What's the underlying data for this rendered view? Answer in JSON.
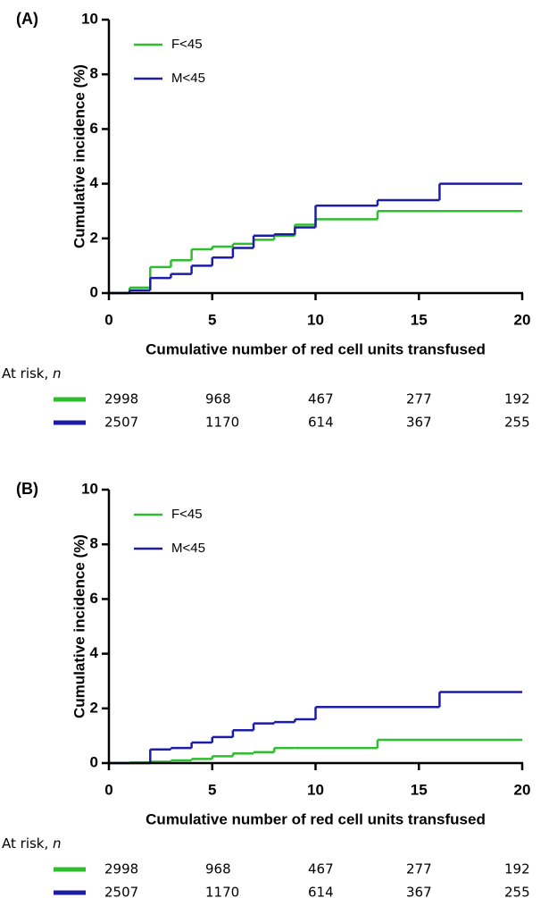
{
  "chart_data": [
    {
      "type": "step",
      "panel_label": "(A)",
      "y_label": "Cumulative incidence (%)",
      "x_label": "Cumulative number of red cell units transfused",
      "xlim": [
        0,
        20
      ],
      "xticks": [
        0,
        5,
        10,
        15,
        20
      ],
      "ylim": [
        0,
        10
      ],
      "yticks": [
        0,
        2,
        4,
        6,
        8,
        10
      ],
      "series": [
        {
          "name": "F<45",
          "color": "#2ebd2e",
          "x": [
            0,
            1,
            2,
            3,
            4,
            5,
            6,
            7,
            8,
            9,
            10,
            13,
            20
          ],
          "values": [
            0,
            0.2,
            0.95,
            1.2,
            1.6,
            1.7,
            1.8,
            1.95,
            2.1,
            2.5,
            2.7,
            3.0,
            3.0
          ]
        },
        {
          "name": "M<45",
          "color": "#1c1ca6",
          "x": [
            0,
            1,
            2,
            3,
            4,
            5,
            6,
            7,
            8,
            9,
            10,
            13,
            16,
            20
          ],
          "values": [
            0,
            0.1,
            0.55,
            0.7,
            1.0,
            1.3,
            1.65,
            2.1,
            2.15,
            2.4,
            3.2,
            3.4,
            4.0,
            4.0
          ]
        }
      ],
      "at_risk": {
        "label": "At risk, ",
        "label_italic": "n",
        "rows": [
          [
            2998,
            968,
            467,
            277,
            192
          ],
          [
            2507,
            1170,
            614,
            367,
            255
          ]
        ]
      }
    },
    {
      "type": "step",
      "panel_label": "(B)",
      "y_label": "Cumulative incidence (%)",
      "x_label": "Cumulative number of red cell units transfused",
      "xlim": [
        0,
        20
      ],
      "xticks": [
        0,
        5,
        10,
        15,
        20
      ],
      "ylim": [
        0,
        10
      ],
      "yticks": [
        0,
        2,
        4,
        6,
        8,
        10
      ],
      "series": [
        {
          "name": "F<45",
          "color": "#2ebd2e",
          "x": [
            0,
            1,
            2,
            3,
            4,
            5,
            6,
            7,
            8,
            9,
            10,
            13,
            20
          ],
          "values": [
            0,
            0.02,
            0.05,
            0.1,
            0.15,
            0.25,
            0.35,
            0.4,
            0.55,
            0.55,
            0.55,
            0.85,
            0.85
          ]
        },
        {
          "name": "M<45",
          "color": "#1c1ca6",
          "x": [
            0,
            2,
            3,
            4,
            5,
            6,
            7,
            8,
            9,
            10,
            16,
            20
          ],
          "values": [
            0,
            0.5,
            0.55,
            0.75,
            0.95,
            1.2,
            1.45,
            1.5,
            1.6,
            2.05,
            2.6,
            2.6
          ]
        }
      ],
      "at_risk": {
        "label": "At risk, ",
        "label_italic": "n",
        "rows": [
          [
            2998,
            968,
            467,
            277,
            192
          ],
          [
            2507,
            1170,
            614,
            367,
            255
          ]
        ]
      }
    }
  ]
}
